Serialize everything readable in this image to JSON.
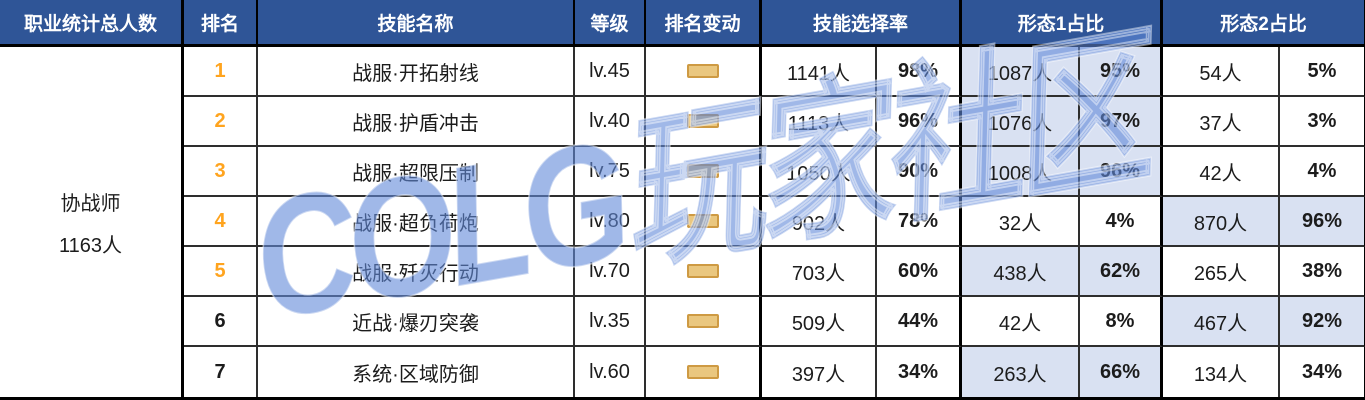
{
  "header": {
    "class_total": "职业统计总人数",
    "rank": "排名",
    "skill_name": "技能名称",
    "level": "等级",
    "rank_change": "排名变动",
    "pick_rate": "技能选择率",
    "form1_share": "形态1占比",
    "form2_share": "形态2占比"
  },
  "class_cell": {
    "name": "协战师",
    "total": "1163人"
  },
  "rows": [
    {
      "rank": "1",
      "rank_orange": true,
      "skill": "战服·开拓射线",
      "level": "lv.45",
      "change": "flat",
      "pick_count": "1141人",
      "pick_pct": "98%",
      "form1_count": "1087人",
      "form1_pct": "95%",
      "form1_hl": true,
      "form2_count": "54人",
      "form2_pct": "5%",
      "form2_hl": false
    },
    {
      "rank": "2",
      "rank_orange": true,
      "skill": "战服·护盾冲击",
      "level": "lv.40",
      "change": "flat",
      "pick_count": "1113人",
      "pick_pct": "96%",
      "form1_count": "1076人",
      "form1_pct": "97%",
      "form1_hl": true,
      "form2_count": "37人",
      "form2_pct": "3%",
      "form2_hl": false
    },
    {
      "rank": "3",
      "rank_orange": true,
      "skill": "战服·超限压制",
      "level": "lv.75",
      "change": "flat",
      "pick_count": "1050人",
      "pick_pct": "90%",
      "form1_count": "1008人",
      "form1_pct": "96%",
      "form1_hl": true,
      "form2_count": "42人",
      "form2_pct": "4%",
      "form2_hl": false
    },
    {
      "rank": "4",
      "rank_orange": true,
      "skill": "战服·超负荷炮",
      "level": "lv.80",
      "change": "flat",
      "pick_count": "902人",
      "pick_pct": "78%",
      "form1_count": "32人",
      "form1_pct": "4%",
      "form1_hl": false,
      "form2_count": "870人",
      "form2_pct": "96%",
      "form2_hl": true
    },
    {
      "rank": "5",
      "rank_orange": true,
      "skill": "战服·歼灭行动",
      "level": "lv.70",
      "change": "flat",
      "pick_count": "703人",
      "pick_pct": "60%",
      "form1_count": "438人",
      "form1_pct": "62%",
      "form1_hl": true,
      "form2_count": "265人",
      "form2_pct": "38%",
      "form2_hl": false
    },
    {
      "rank": "6",
      "rank_orange": false,
      "skill": "近战·爆刃突袭",
      "level": "lv.35",
      "change": "flat",
      "pick_count": "509人",
      "pick_pct": "44%",
      "form1_count": "42人",
      "form1_pct": "8%",
      "form1_hl": false,
      "form2_count": "467人",
      "form2_pct": "92%",
      "form2_hl": true
    },
    {
      "rank": "7",
      "rank_orange": false,
      "skill": "系统·区域防御",
      "level": "lv.60",
      "change": "flat",
      "pick_count": "397人",
      "pick_pct": "34%",
      "form1_count": "263人",
      "form1_pct": "66%",
      "form1_hl": true,
      "form2_count": "134人",
      "form2_pct": "34%",
      "form2_hl": false
    }
  ],
  "watermark": {
    "text": "COLG玩家社区"
  },
  "colors": {
    "header_bg": "#2F5597",
    "highlight": "#D9E1F2",
    "rank_orange": "#FFA41E",
    "icon_fill": "#EAC77F",
    "icon_border": "#CE9A43",
    "watermark_blue": "#6188D9"
  }
}
